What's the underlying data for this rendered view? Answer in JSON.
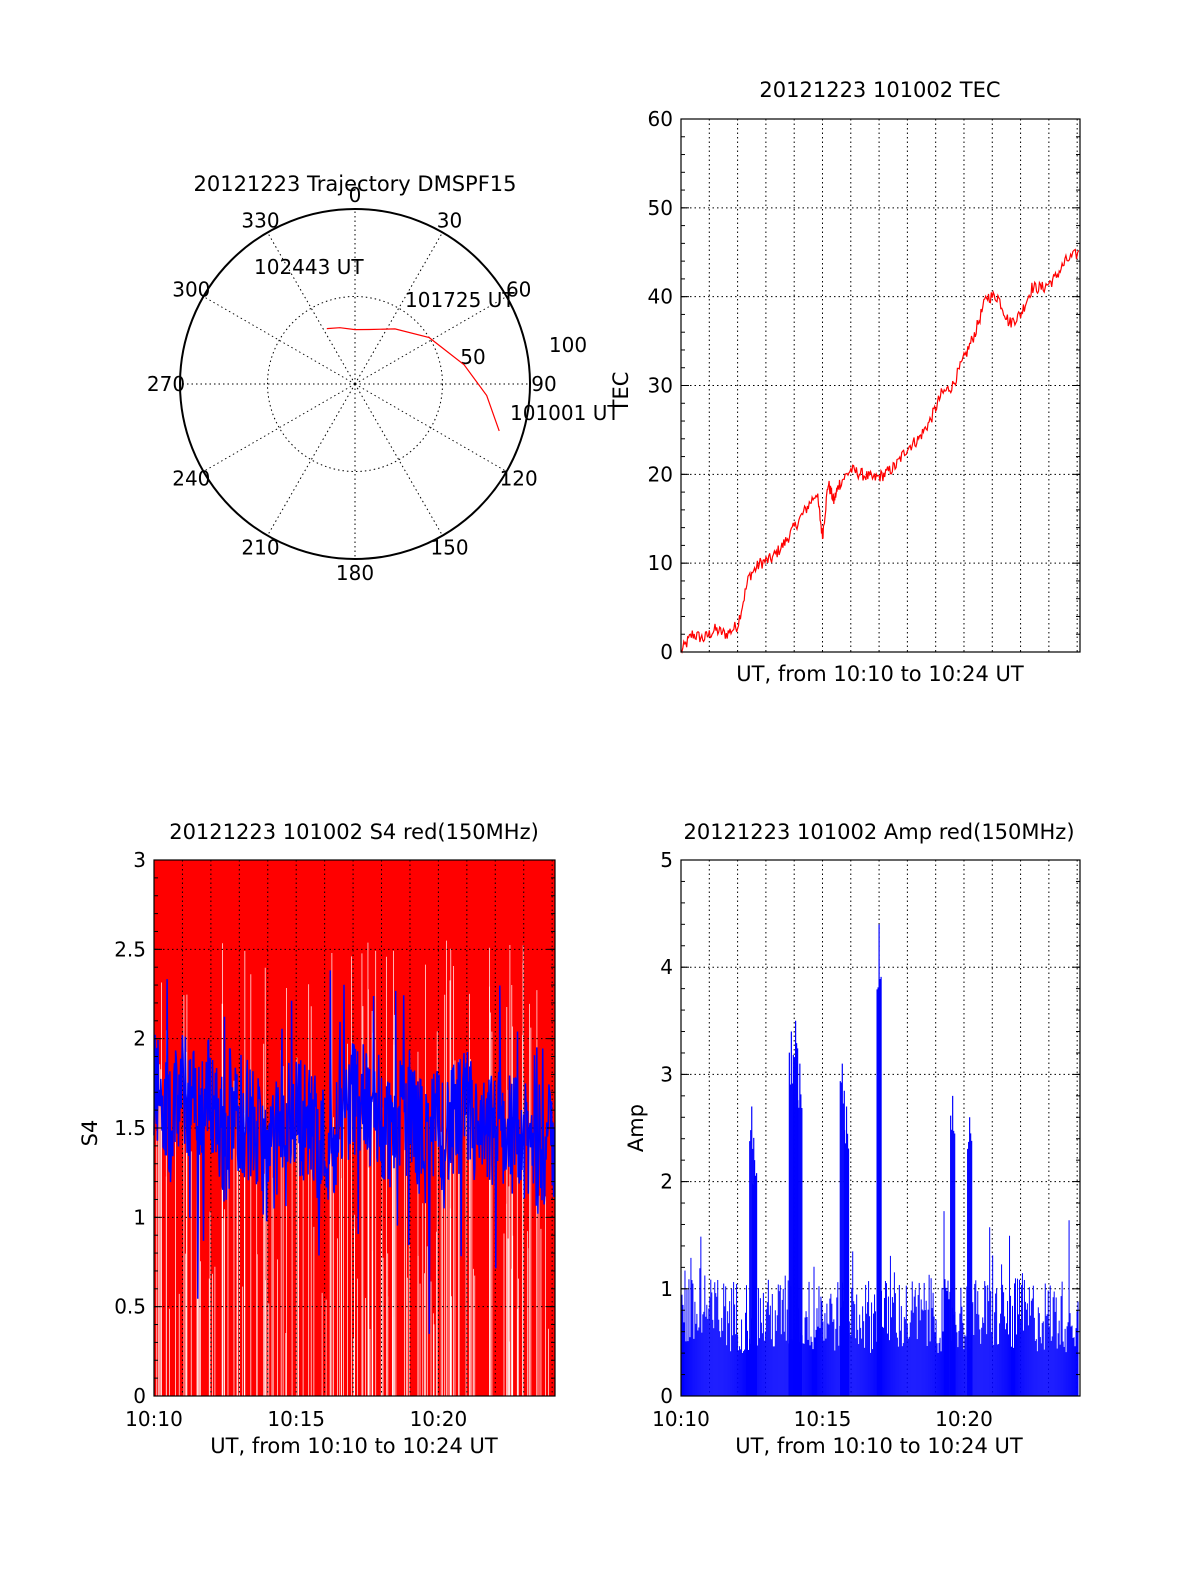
{
  "colors": {
    "red": "#ff0000",
    "blue": "#0000ff",
    "axis": "#000000"
  },
  "chart_data": [
    {
      "type": "polar",
      "title": "20121223 Trajectory DMSPF15",
      "azimuth_labels": [
        "0",
        "30",
        "60",
        "90",
        "120",
        "150",
        "180",
        "210",
        "240",
        "270",
        "300",
        "330"
      ],
      "radial_labels": [
        "50",
        "100"
      ],
      "trajectory": {
        "points": [
          {
            "az": 108,
            "el": 12
          },
          {
            "az": 95,
            "el": 22
          },
          {
            "az": 80,
            "el": 33
          },
          {
            "az": 58,
            "el": 45
          },
          {
            "az": 36,
            "el": 55
          },
          {
            "az": 15,
            "el": 61
          },
          {
            "az": 0,
            "el": 62
          },
          {
            "az": 345,
            "el": 60
          },
          {
            "az": 333,
            "el": 58
          }
        ],
        "labels": [
          {
            "text": "101001 UT",
            "az": 108,
            "el": 12
          },
          {
            "text": "101725 UT",
            "az": 58,
            "el": 45
          },
          {
            "text": "102443 UT",
            "az": 333,
            "el": 58
          }
        ]
      }
    },
    {
      "type": "line",
      "title": "20121223 101002 TEC",
      "xlabel": "UT, from 10:10 to 10:24 UT",
      "ylabel": "TEC",
      "xlim": [
        0,
        14.1
      ],
      "ylim": [
        0,
        60
      ],
      "yticks": [
        "0",
        "10",
        "20",
        "30",
        "40",
        "50",
        "60"
      ],
      "series": [
        {
          "color": "red",
          "x": [
            0,
            0.4,
            0.8,
            1.2,
            1.6,
            2.0,
            2.4,
            2.8,
            3.2,
            3.6,
            4.0,
            4.4,
            4.8,
            5.0,
            5.2,
            5.4,
            5.6,
            6.0,
            6.4,
            6.8,
            7.2,
            7.6,
            8.0,
            8.4,
            8.8,
            9.2,
            9.6,
            10.0,
            10.4,
            10.8,
            11.2,
            11.6,
            12.0,
            12.4,
            12.8,
            13.2,
            13.6,
            14.1
          ],
          "y": [
            0,
            2,
            1.5,
            2.5,
            2,
            3,
            8.5,
            10,
            10.5,
            12,
            14,
            16,
            18,
            13,
            19,
            17,
            19,
            20.5,
            20,
            19.5,
            20,
            21,
            23,
            24,
            26,
            29,
            30,
            33,
            36,
            40,
            40,
            37,
            38,
            41,
            41,
            42,
            44,
            45
          ]
        }
      ]
    },
    {
      "type": "area",
      "title": "20121223 101002 S4 red(150MHz)",
      "xlabel": "UT, from 10:10 to 10:24 UT",
      "ylabel": "S4",
      "xlim": [
        0,
        14.1
      ],
      "ylim": [
        0,
        3
      ],
      "xticks": [
        "10:10",
        "10:15",
        "10:20"
      ],
      "yticks": [
        "0",
        "0.5",
        "1",
        "1.5",
        "2",
        "2.5",
        "3"
      ],
      "series": [
        {
          "color": "red",
          "description_level": 3
        },
        {
          "color": "blue",
          "x": [
            0,
            0.5,
            1,
            1.5,
            2,
            2.5,
            3,
            3.5,
            4,
            4.5,
            5,
            5.5,
            6,
            6.5,
            7,
            7.5,
            8,
            8.5,
            9,
            9.5,
            10,
            10.5,
            11,
            11.5,
            12,
            12.5,
            13,
            13.5,
            14.1
          ],
          "y": [
            1.8,
            1.5,
            1.7,
            1.6,
            1.7,
            1.4,
            1.6,
            1.5,
            1.3,
            1.5,
            1.6,
            1.5,
            1.4,
            1.5,
            1.7,
            1.6,
            1.5,
            1.5,
            1.6,
            1.4,
            1.5,
            1.5,
            1.6,
            1.4,
            1.5,
            1.5,
            1.4,
            1.4,
            1.4
          ]
        }
      ]
    },
    {
      "type": "bar",
      "title": "20121223 101002 Amp red(150MHz)",
      "xlabel": "UT, from 10:10 to 10:24 UT",
      "ylabel": "Amp",
      "xlim": [
        0,
        14.1
      ],
      "ylim": [
        0,
        5
      ],
      "xticks": [
        "10:10",
        "10:15",
        "10:20"
      ],
      "yticks": [
        "0",
        "1",
        "2",
        "3",
        "4",
        "5"
      ],
      "series": [
        {
          "color": "blue",
          "baseline": 0.7,
          "spikes": [
            {
              "x": 2.5,
              "y": 2.7
            },
            {
              "x": 2.6,
              "y": 2.2
            },
            {
              "x": 3.9,
              "y": 3.4
            },
            {
              "x": 4.05,
              "y": 3.5
            },
            {
              "x": 4.2,
              "y": 3.1
            },
            {
              "x": 5.7,
              "y": 3.1
            },
            {
              "x": 5.85,
              "y": 2.7
            },
            {
              "x": 7.0,
              "y": 4.4
            },
            {
              "x": 9.6,
              "y": 2.8
            },
            {
              "x": 10.2,
              "y": 2.6
            }
          ]
        }
      ]
    }
  ]
}
